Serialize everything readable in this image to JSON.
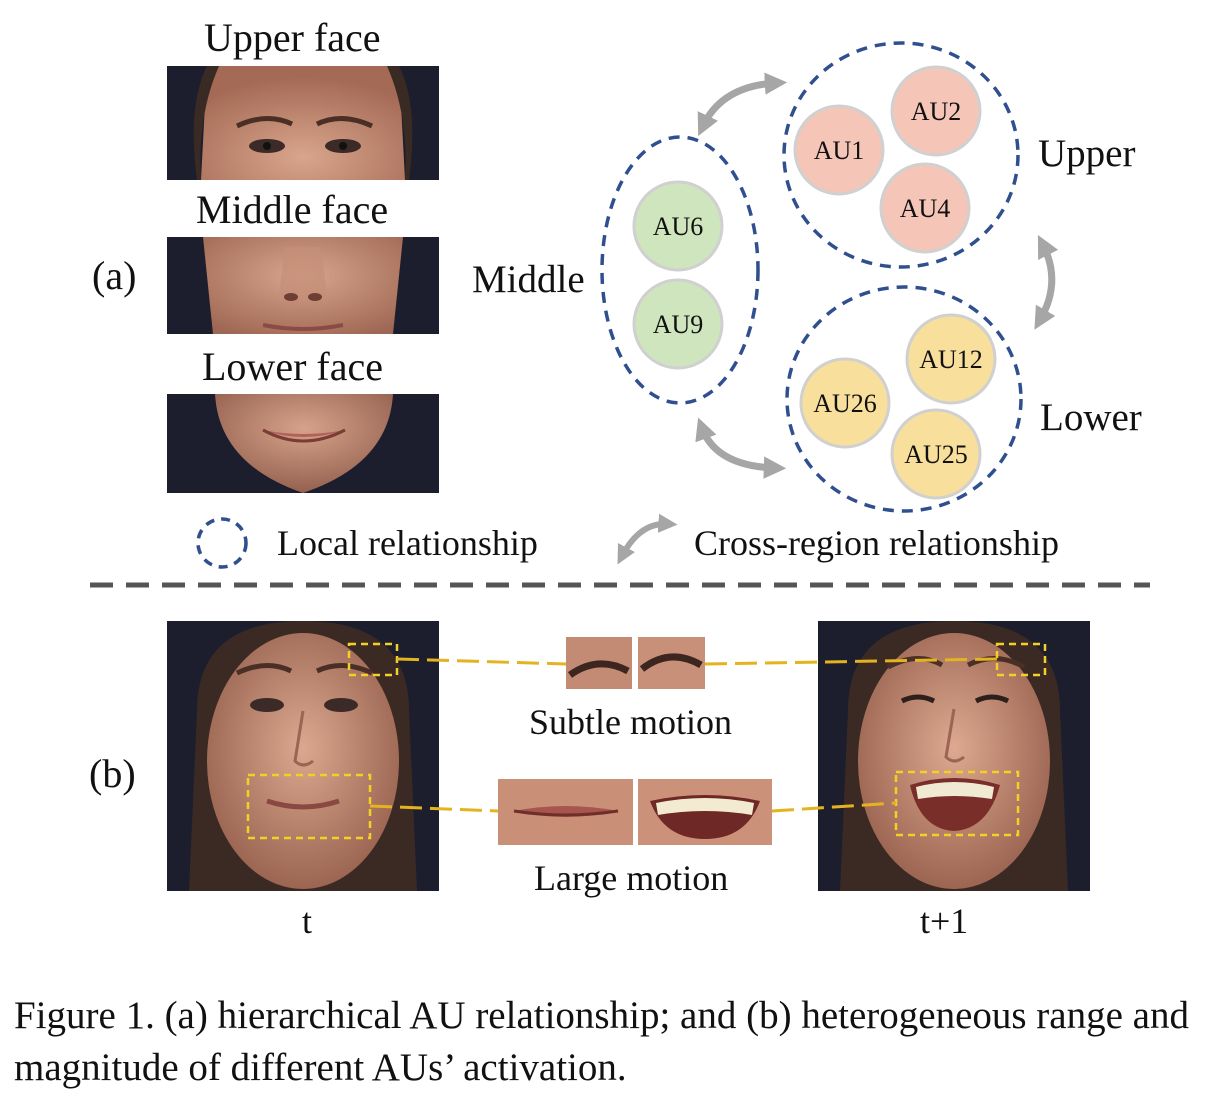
{
  "panel_a": {
    "label": "(a)",
    "face_titles": [
      "Upper face",
      "Middle face",
      "Lower face"
    ],
    "groups": {
      "upper": {
        "name": "Upper",
        "aus": [
          "AU1",
          "AU2",
          "AU4"
        ],
        "color": "#f5c6b8"
      },
      "middle": {
        "name": "Middle",
        "aus": [
          "AU6",
          "AU9"
        ],
        "color": "#cfe5bd"
      },
      "lower": {
        "name": "Lower",
        "aus": [
          "AU12",
          "AU26",
          "AU25"
        ],
        "color": "#f8df9c"
      }
    },
    "legend": {
      "local": "Local relationship",
      "cross": "Cross-region relationship"
    },
    "colors": {
      "dash_circle": "#2f4f8f",
      "arrow": "#a6a6a6",
      "separator": "#555555"
    }
  },
  "panel_b": {
    "label": "(b)",
    "subtle": "Subtle motion",
    "large": "Large motion",
    "frame_left": "t",
    "frame_right": "t+1",
    "colors": {
      "highlight": "#f2d024",
      "connector": "#e4b320"
    }
  },
  "caption": "Figure 1. (a) hierarchical AU relationship; and (b) heterogeneous range and magnitude of different AUs’ activation."
}
